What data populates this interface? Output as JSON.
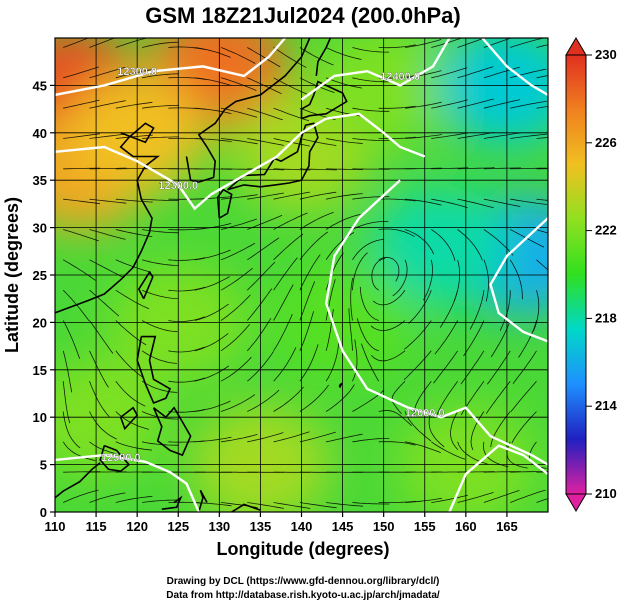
{
  "chart_data": {
    "type": "heatmap",
    "title": "GSM 18Z21Jul2024 (200.0hPa)",
    "xlabel": "Longitude (degrees)",
    "ylabel": "Latitude  (degrees)",
    "xlim": [
      110,
      170
    ],
    "ylim": [
      0,
      50
    ],
    "x_ticks": [
      110,
      115,
      120,
      125,
      130,
      135,
      140,
      145,
      150,
      155,
      160,
      165
    ],
    "y_ticks": [
      0,
      5,
      10,
      15,
      20,
      25,
      30,
      35,
      40,
      45
    ],
    "grid": true,
    "colorbar": {
      "min": 210,
      "max": 230,
      "ticks": [
        210,
        214,
        218,
        222,
        226,
        230
      ],
      "colors": [
        "#e020a0",
        "#2020c0",
        "#1e90ff",
        "#00d8c8",
        "#30e020",
        "#90e020",
        "#f0c020",
        "#f08020",
        "#e03020"
      ]
    },
    "contours": [
      {
        "label": "12000.0"
      },
      {
        "label": "12500.0"
      },
      {
        "label": "12400.0"
      },
      {
        "label": "12300.0"
      }
    ],
    "field_samples": [
      {
        "lon": 112,
        "lat": 45,
        "value": 229
      },
      {
        "lon": 130,
        "lat": 47,
        "value": 228
      },
      {
        "lon": 113,
        "lat": 36,
        "value": 226
      },
      {
        "lon": 120,
        "lat": 40,
        "value": 225
      },
      {
        "lon": 140,
        "lat": 38,
        "value": 223
      },
      {
        "lon": 150,
        "lat": 45,
        "value": 222
      },
      {
        "lon": 165,
        "lat": 45,
        "value": 217
      },
      {
        "lon": 167,
        "lat": 27,
        "value": 216
      },
      {
        "lon": 157,
        "lat": 28,
        "value": 218
      },
      {
        "lon": 145,
        "lat": 20,
        "value": 221
      },
      {
        "lon": 125,
        "lat": 20,
        "value": 222
      },
      {
        "lon": 115,
        "lat": 10,
        "value": 222
      },
      {
        "lon": 160,
        "lat": 5,
        "value": 222
      },
      {
        "lon": 135,
        "lat": 5,
        "value": 223
      }
    ]
  },
  "credits": {
    "line1": "Drawing by DCL (https://www.gfd-dennou.org/library/dcl/)",
    "line2": "Data from http://database.rish.kyoto-u.ac.jp/arch/jmadata/"
  }
}
